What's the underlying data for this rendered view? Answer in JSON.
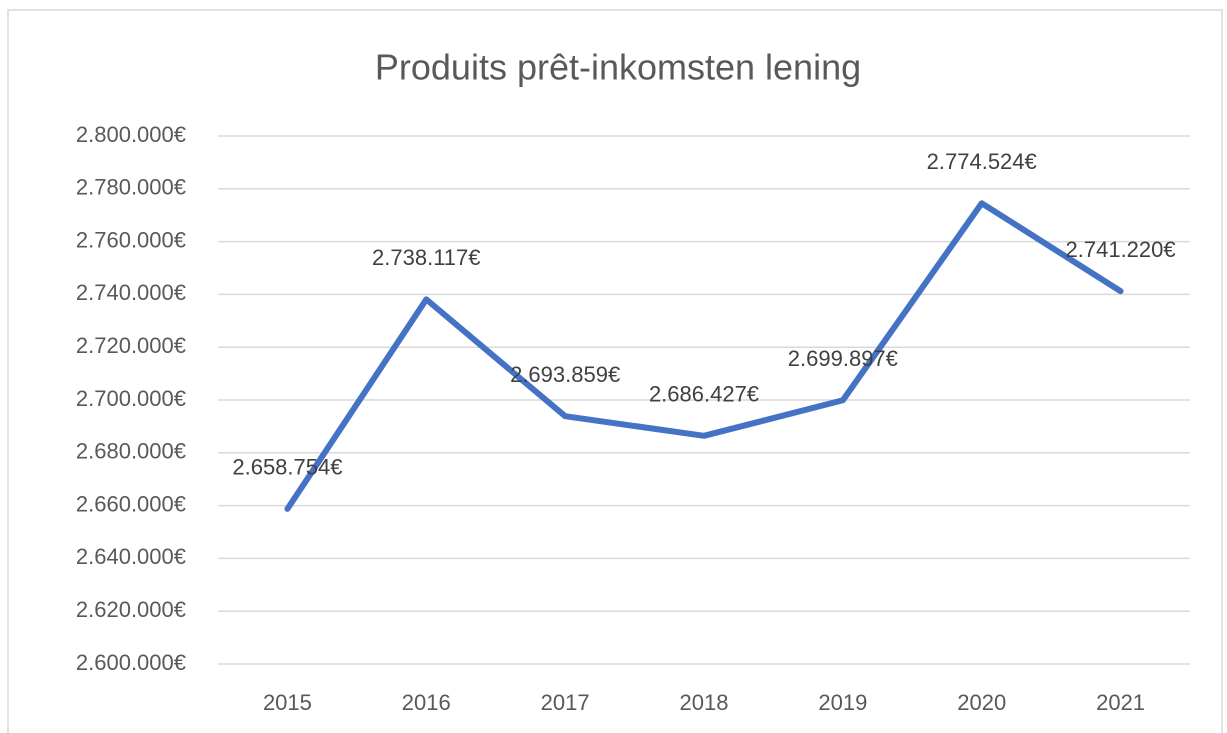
{
  "chart_data": {
    "type": "line",
    "title": "Produits prêt-inkomsten lening",
    "categories": [
      "2015",
      "2016",
      "2017",
      "2018",
      "2019",
      "2020",
      "2021"
    ],
    "series": [
      {
        "name": "Produits prêt-inkomsten lening",
        "color": "#4472c4",
        "values": [
          2658754,
          2738117,
          2693859,
          2686427,
          2699897,
          2774524,
          2741220
        ],
        "value_labels": [
          "2.658.754€",
          "2.738.117€",
          "2.693.859€",
          "2.686.427€",
          "2.699.897€",
          "2.774.524€",
          "2.741.220€"
        ]
      }
    ],
    "ylim": [
      2600000,
      2800000
    ],
    "yticks": [
      {
        "value": 2600000,
        "label": "2.600.000€"
      },
      {
        "value": 2620000,
        "label": "2.620.000€"
      },
      {
        "value": 2640000,
        "label": "2.640.000€"
      },
      {
        "value": 2660000,
        "label": "2.660.000€"
      },
      {
        "value": 2680000,
        "label": "2.680.000€"
      },
      {
        "value": 2700000,
        "label": "2.700.000€"
      },
      {
        "value": 2720000,
        "label": "2.720.000€"
      },
      {
        "value": 2740000,
        "label": "2.740.000€"
      },
      {
        "value": 2760000,
        "label": "2.760.000€"
      },
      {
        "value": 2780000,
        "label": "2.780.000€"
      },
      {
        "value": 2800000,
        "label": "2.800.000€"
      }
    ],
    "grid": true
  }
}
